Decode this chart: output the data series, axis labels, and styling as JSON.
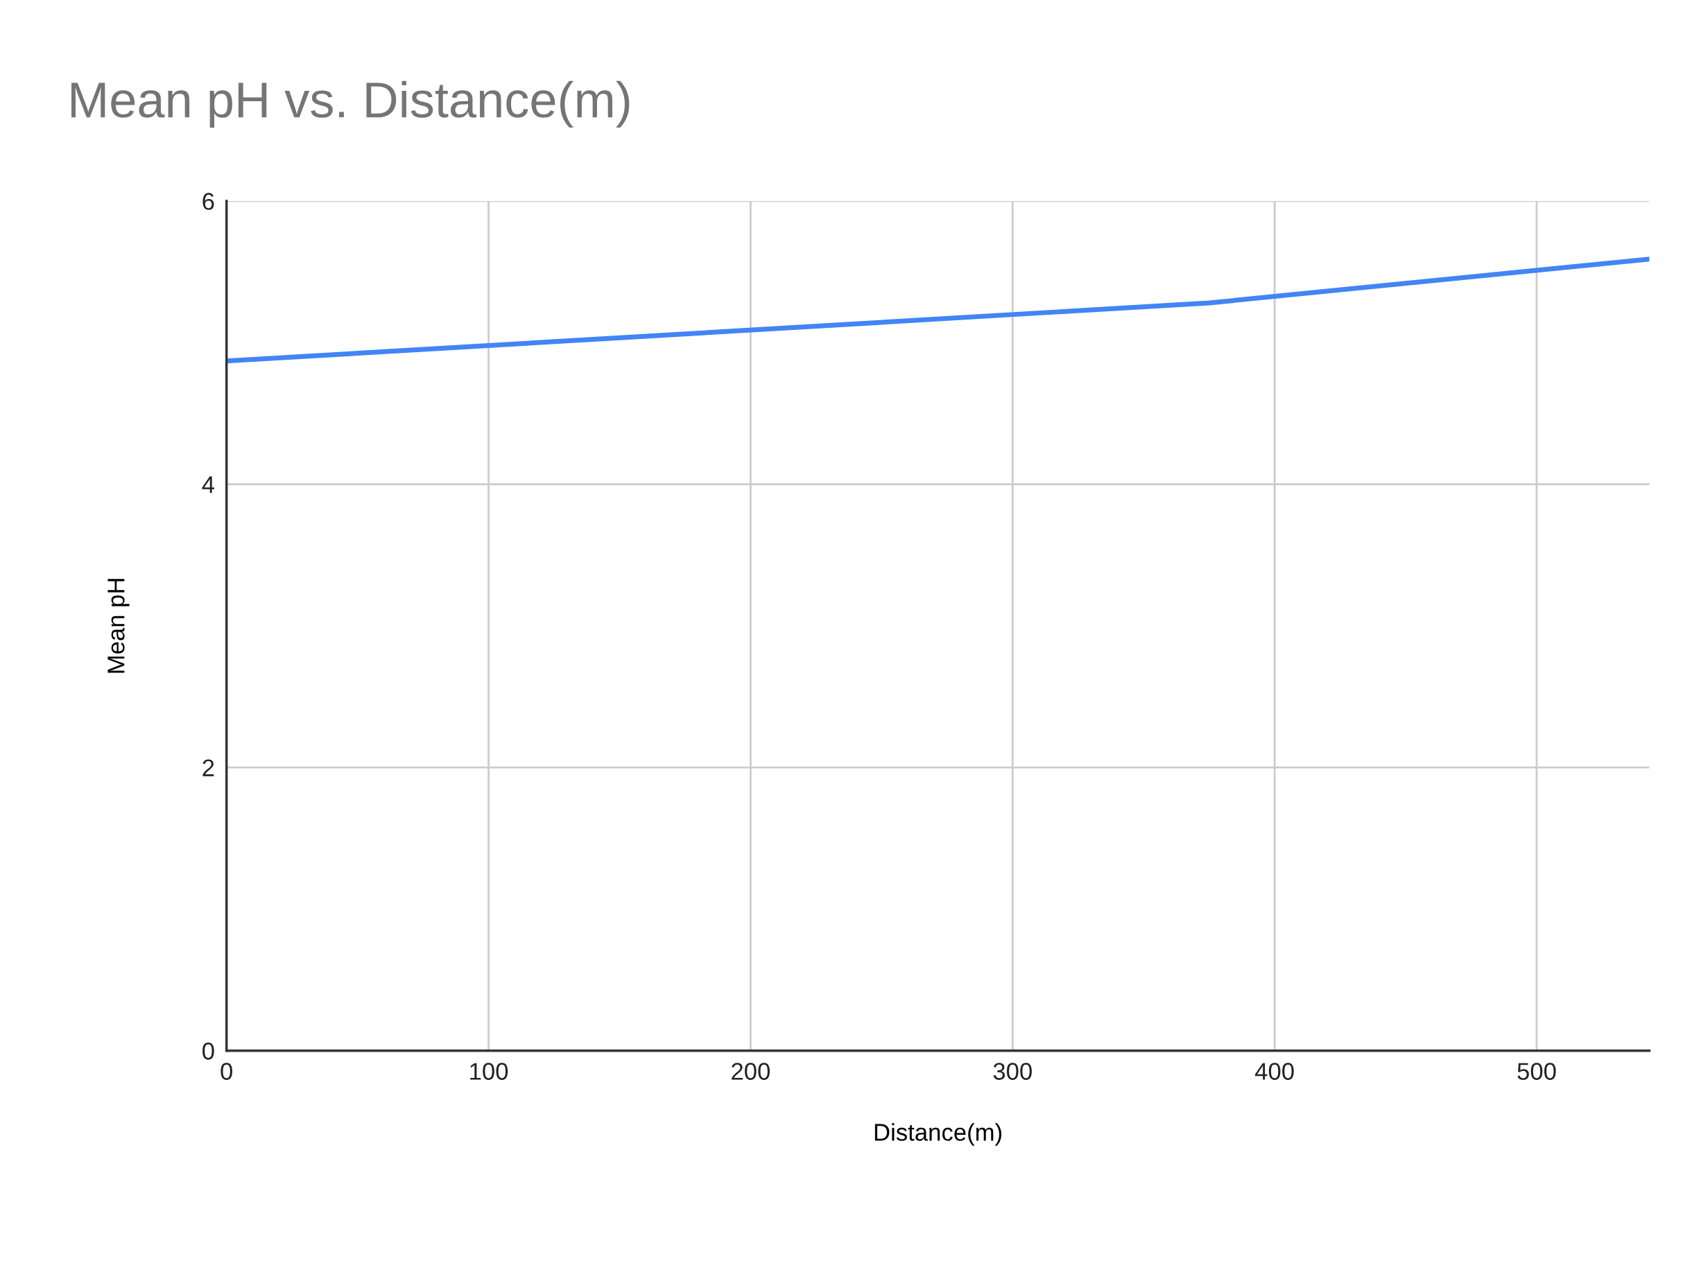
{
  "chart_data": {
    "type": "line",
    "title": "Mean pH vs. Distance(m)",
    "xlabel": "Distance(m)",
    "ylabel": "Mean pH",
    "series": [
      {
        "color": "#4285f4",
        "x": [
          0,
          375,
          543
        ],
        "values": [
          4.87,
          5.28,
          5.59
        ]
      }
    ],
    "xlim": [
      0,
      543
    ],
    "xticks": [
      0,
      100,
      200,
      300,
      400,
      500
    ],
    "ylim": [
      0,
      6
    ],
    "yticks": [
      0,
      2,
      4,
      6
    ],
    "grid": true,
    "legend": false,
    "marker": "none",
    "line_style": "solid"
  }
}
